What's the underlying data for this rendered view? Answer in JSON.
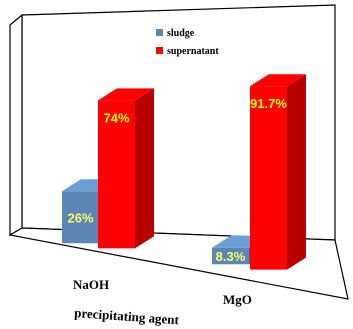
{
  "chart_data": {
    "type": "bar",
    "categories": [
      "NaOH",
      "MgO"
    ],
    "series": [
      {
        "name": "sludge",
        "values": [
          26,
          8.3
        ],
        "labels": [
          "26%",
          "8.3%"
        ],
        "color": "#5b86b5"
      },
      {
        "name": "supernatant",
        "values": [
          74,
          91.7
        ],
        "labels": [
          "74%",
          "91.7%"
        ],
        "color": "#ff0000"
      }
    ],
    "title": "",
    "xlabel": "precipitating agent",
    "ylabel": "",
    "ylim": [
      0,
      100
    ],
    "legend": "top-center",
    "grid": false,
    "label_colors": {
      "sludge": "#ffff66",
      "supernatant": "#ffff00"
    }
  }
}
